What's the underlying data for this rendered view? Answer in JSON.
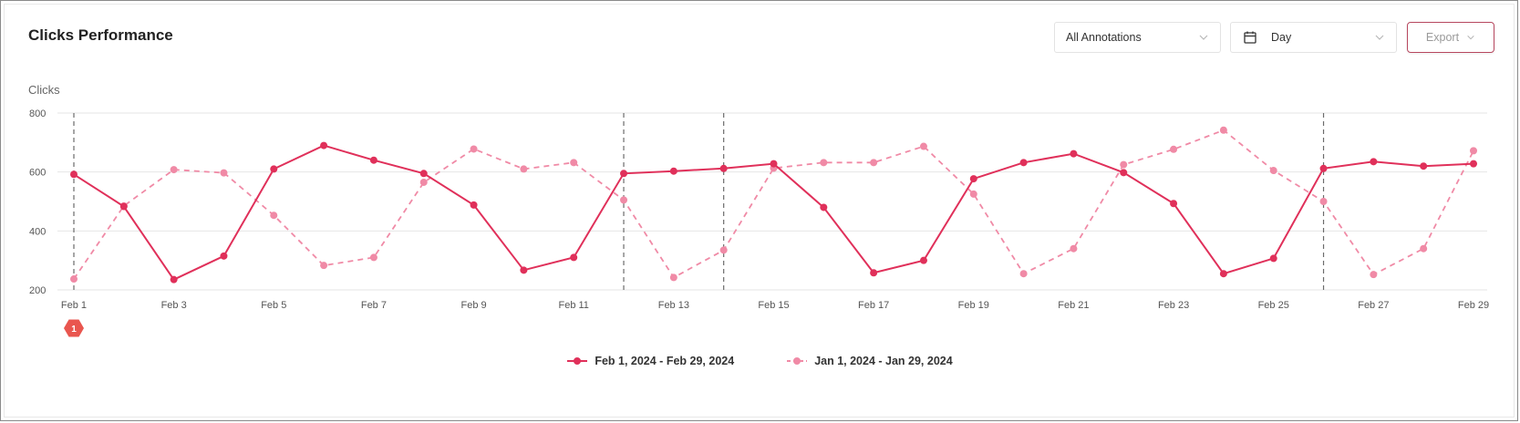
{
  "header": {
    "title": "Clicks Performance",
    "annotations_select": "All Annotations",
    "interval_select": "Day",
    "export_label": "Export"
  },
  "colors": {
    "current": "#e0305a",
    "previous": "#f08aa6",
    "grid": "#e6e6e6",
    "annotation_line": "#6b6b6b",
    "badge": "#e9564f"
  },
  "annotation_badge": "1",
  "legend": {
    "current": "Feb 1, 2024 - Feb 29, 2024",
    "previous": "Jan 1, 2024 - Jan 29, 2024"
  },
  "chart_data": {
    "type": "line",
    "ylabel": "Clicks",
    "ylim": [
      200,
      800
    ],
    "yticks": [
      200,
      400,
      600,
      800
    ],
    "grid": true,
    "legend_position": "bottom-center",
    "x": [
      "Feb 1",
      "Feb 2",
      "Feb 3",
      "Feb 4",
      "Feb 5",
      "Feb 6",
      "Feb 7",
      "Feb 8",
      "Feb 9",
      "Feb 10",
      "Feb 11",
      "Feb 12",
      "Feb 13",
      "Feb 14",
      "Feb 15",
      "Feb 16",
      "Feb 17",
      "Feb 18",
      "Feb 19",
      "Feb 20",
      "Feb 21",
      "Feb 22",
      "Feb 23",
      "Feb 24",
      "Feb 25",
      "Feb 26",
      "Feb 27",
      "Feb 28",
      "Feb 29"
    ],
    "xtick_labels": [
      "Feb 1",
      "Feb 3",
      "Feb 5",
      "Feb 7",
      "Feb 9",
      "Feb 11",
      "Feb 13",
      "Feb 15",
      "Feb 17",
      "Feb 19",
      "Feb 21",
      "Feb 23",
      "Feb 25",
      "Feb 27",
      "Feb 29"
    ],
    "annotation_dates": [
      "Feb 1",
      "Feb 12",
      "Feb 14",
      "Feb 26"
    ],
    "series": [
      {
        "name": "Feb 1, 2024 - Feb 29, 2024",
        "style": "solid",
        "values": [
          592,
          483,
          235,
          315,
          610,
          690,
          640,
          595,
          488,
          267,
          310,
          595,
          603,
          612,
          628,
          480,
          258,
          300,
          577,
          632,
          662,
          598,
          493,
          255,
          307,
          612,
          635,
          620,
          628
        ]
      },
      {
        "name": "Jan 1, 2024 - Jan 29, 2024",
        "style": "dashed",
        "values": [
          237,
          485,
          608,
          597,
          453,
          283,
          310,
          565,
          678,
          610,
          632,
          505,
          242,
          335,
          613,
          632,
          632,
          687,
          525,
          255,
          340,
          625,
          677,
          742,
          605,
          500,
          252,
          340,
          672
        ]
      }
    ]
  }
}
